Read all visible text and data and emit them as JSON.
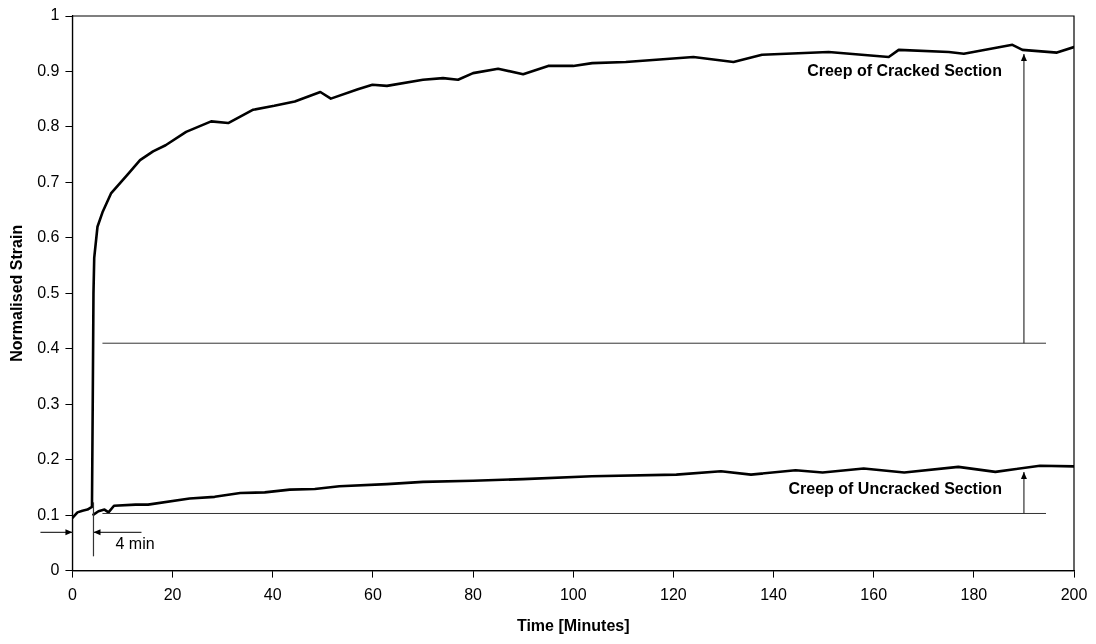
{
  "chart_data": {
    "type": "line",
    "xlabel": "Time [Minutes]",
    "ylabel": "Normalised Strain",
    "xlim": [
      0,
      200
    ],
    "xticks": [
      0,
      20,
      40,
      60,
      80,
      100,
      120,
      140,
      160,
      180,
      200
    ],
    "ylim": [
      0,
      1
    ],
    "yticks": [
      0,
      0.1,
      0.2,
      0.3,
      0.4,
      0.5,
      0.6,
      0.7,
      0.8,
      0.9,
      1
    ],
    "legend": false,
    "marker": "none",
    "line_style": "solid",
    "series": [
      {
        "color": "#000000",
        "x": [
          0,
          0.5,
          1,
          2,
          3,
          3.9,
          4.05,
          4.2,
          4.35,
          5,
          6,
          7.7,
          11,
          13.5,
          16.1,
          18.6,
          22.7,
          27.7,
          31.1,
          36.1,
          40.3,
          44.4,
          49.5,
          51.6,
          57,
          59.9,
          62.8,
          70,
          74,
          77,
          80,
          85,
          90,
          95,
          100,
          103.8,
          110.5,
          124,
          132,
          137.7,
          151,
          163,
          165,
          175,
          178,
          187.7,
          189.7,
          196.6,
          200
        ],
        "values": [
          0.095,
          0.1,
          0.105,
          0.108,
          0.11,
          0.115,
          0.3,
          0.5,
          0.564,
          0.62,
          0.646,
          0.68,
          0.714,
          0.74,
          0.756,
          0.767,
          0.791,
          0.81,
          0.807,
          0.831,
          0.838,
          0.846,
          0.863,
          0.851,
          0.868,
          0.876,
          0.874,
          0.885,
          0.888,
          0.885,
          0.897,
          0.905,
          0.895,
          0.91,
          0.91,
          0.915,
          0.917,
          0.926,
          0.917,
          0.93,
          0.935,
          0.926,
          0.939,
          0.935,
          0.932,
          0.948,
          0.939,
          0.934,
          0.944
        ]
      },
      {
        "color": "#000000",
        "x": [
          4.2,
          5.2,
          6.4,
          7.2,
          8.3,
          12.6,
          15.1,
          23.4,
          28.4,
          33.5,
          38.4,
          43.4,
          48.4,
          53.3,
          62.8,
          70,
          80,
          90,
          103.7,
          120.6,
          129.5,
          135.5,
          144.4,
          149.8,
          158,
          166.1,
          176.9,
          184.3,
          193.2,
          200
        ],
        "values": [
          0.101,
          0.107,
          0.11,
          0.105,
          0.117,
          0.119,
          0.119,
          0.13,
          0.133,
          0.14,
          0.141,
          0.146,
          0.147,
          0.152,
          0.156,
          0.16,
          0.162,
          0.165,
          0.17,
          0.173,
          0.179,
          0.173,
          0.181,
          0.177,
          0.184,
          0.177,
          0.187,
          0.178,
          0.189,
          0.188
        ]
      }
    ],
    "ref_lines": [
      {
        "axis": "y",
        "value": 0.41,
        "label": null
      },
      {
        "axis": "y",
        "value": 0.103,
        "label": null
      }
    ],
    "annotations": [
      "Creep of Cracked Section",
      "Creep of Uncracked Section",
      "4 min"
    ]
  }
}
